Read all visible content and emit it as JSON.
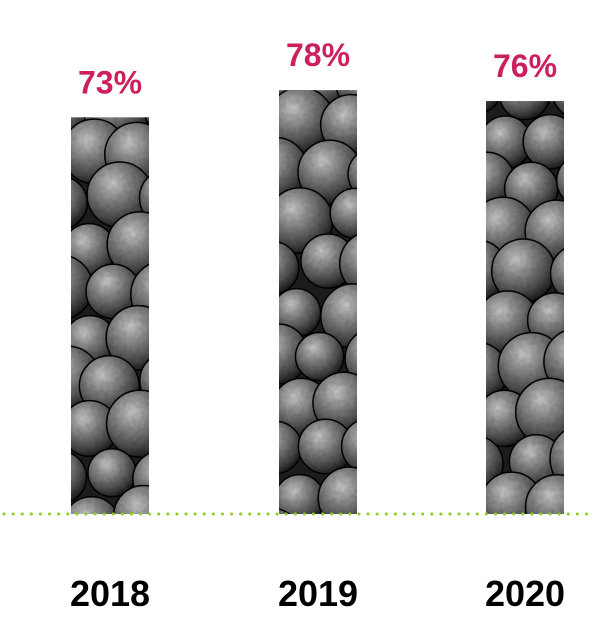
{
  "chart_data": {
    "type": "bar",
    "title": "",
    "xlabel": "",
    "ylabel": "",
    "categories": [
      "2018",
      "2019",
      "2020"
    ],
    "values": [
      73,
      78,
      76
    ],
    "data_labels": [
      "73%",
      "78%",
      "76%"
    ],
    "value_unit": "%",
    "bar_fill": "photo texture of dark round avocados (grayscale)",
    "grid": false,
    "legend": "none",
    "baseline_style": "dotted"
  },
  "colors": {
    "value_label": "#cc1f5d",
    "category_label": "#000000",
    "baseline": "#8ccf1f",
    "background": "#ffffff"
  }
}
